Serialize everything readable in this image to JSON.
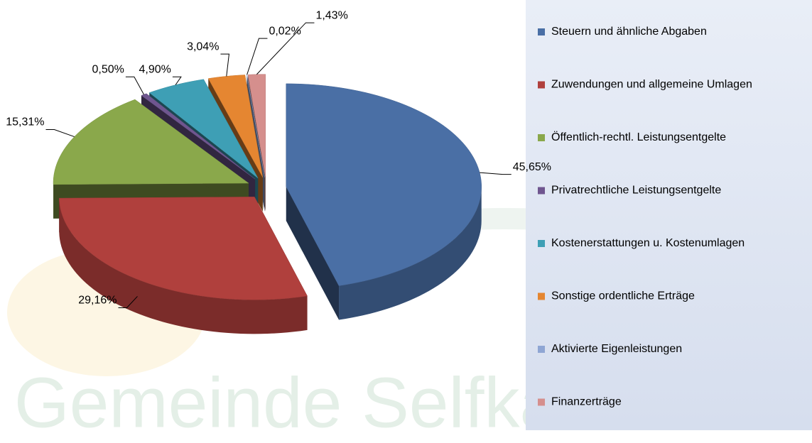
{
  "chart_data": {
    "type": "pie3d",
    "watermark": "Gemeinde Selfkant",
    "categories": [
      "Steuern und ähnliche Abgaben",
      "Zuwendungen und allgemeine Umlagen",
      "Öffentlich-rechtl. Leistungsentgelte",
      "Privatrechtliche Leistungsentgelte",
      "Kostenerstattungen u. Kostenumlagen",
      "Sonstige ordentliche Erträge",
      "Aktivierte Eigenleistungen",
      "Finanzerträge"
    ],
    "values": [
      45.65,
      29.16,
      15.31,
      0.5,
      4.9,
      3.04,
      0.02,
      1.43
    ],
    "value_labels": [
      "45,65%",
      "29,16%",
      "15,31%",
      "0,50%",
      "4,90%",
      "3,04%",
      "0,02%",
      "1,43%"
    ],
    "colors": [
      "#4a6fa5",
      "#b0403d",
      "#8aa84b",
      "#6f568f",
      "#3e9fb5",
      "#e58631",
      "#8fa6d4",
      "#d58f8d"
    ],
    "legend": "right"
  }
}
